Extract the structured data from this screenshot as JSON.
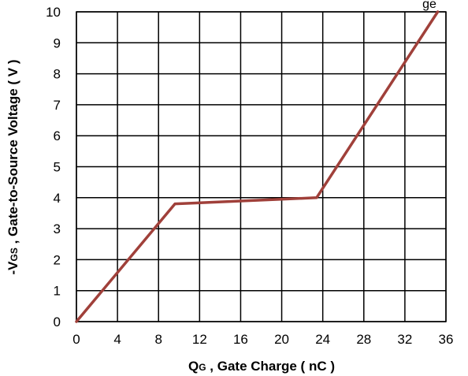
{
  "chart_data": {
    "type": "line",
    "title_fragment": "ge",
    "xlabel": {
      "main": "Q",
      "sub": "G",
      "rest": " , Gate Charge ( nC )"
    },
    "ylabel": {
      "main": "-V",
      "sub": "GS",
      "rest": " , Gate-to-Source Voltage ( V )"
    },
    "xlim": [
      0,
      36
    ],
    "ylim": [
      0,
      10
    ],
    "xticks": [
      0,
      4,
      8,
      12,
      16,
      20,
      24,
      28,
      32,
      36
    ],
    "yticks": [
      0,
      1,
      2,
      3,
      4,
      5,
      6,
      7,
      8,
      9,
      10
    ],
    "grid": true,
    "series": [
      {
        "color": "#a0403a",
        "x": [
          0,
          9.6,
          23.4,
          35.2
        ],
        "y": [
          0,
          3.8,
          4.0,
          10
        ]
      }
    ]
  }
}
